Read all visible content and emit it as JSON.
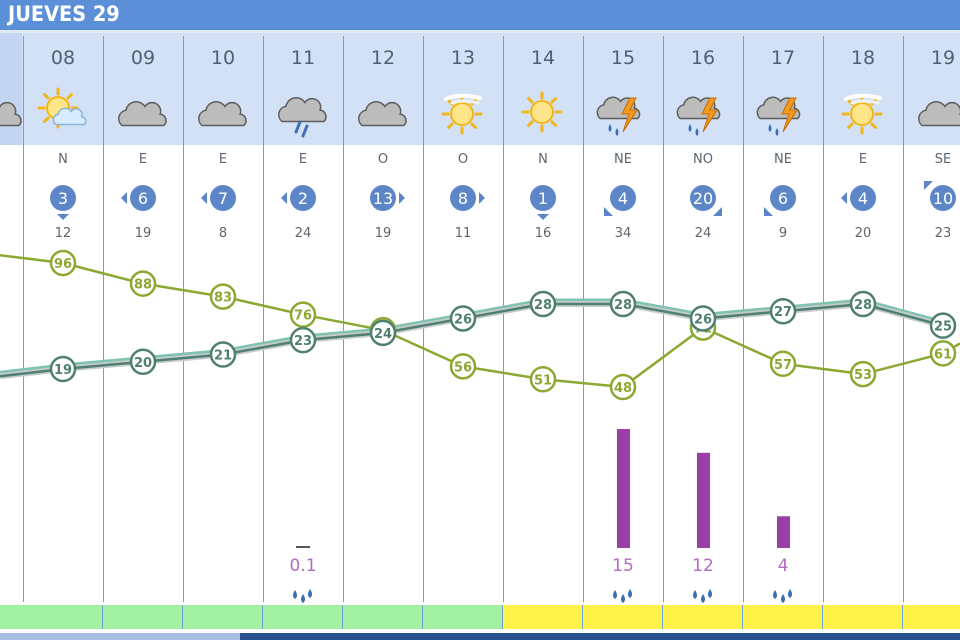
{
  "header": {
    "title": "JUEVES 29"
  },
  "hours": [
    {
      "label": "08",
      "icon": "sun-behind-cloud-icon",
      "direction": "N",
      "wind": "3",
      "arrow": "down",
      "gust": "12",
      "rain": null
    },
    {
      "label": "09",
      "icon": "cloud-icon",
      "direction": "E",
      "wind": "6",
      "arrow": "left",
      "gust": "19",
      "rain": null
    },
    {
      "label": "10",
      "icon": "cloud-icon",
      "direction": "E",
      "wind": "7",
      "arrow": "left",
      "gust": "8",
      "rain": null
    },
    {
      "label": "11",
      "icon": "rain-cloud-icon",
      "direction": "E",
      "wind": "2",
      "arrow": "left",
      "gust": "24",
      "rain": "0.1"
    },
    {
      "label": "12",
      "icon": "cloud-icon",
      "direction": "O",
      "wind": "13",
      "arrow": "right",
      "gust": "19",
      "rain": null
    },
    {
      "label": "13",
      "icon": "hazy-sun-icon",
      "direction": "O",
      "wind": "8",
      "arrow": "right",
      "gust": "11",
      "rain": null
    },
    {
      "label": "14",
      "icon": "sun-icon",
      "direction": "N",
      "wind": "1",
      "arrow": "down",
      "gust": "16",
      "rain": null
    },
    {
      "label": "15",
      "icon": "thunderstorm-icon",
      "direction": "NE",
      "wind": "4",
      "arrow": "bottom-left",
      "gust": "34",
      "rain": "15"
    },
    {
      "label": "16",
      "icon": "thunderstorm-icon",
      "direction": "NO",
      "wind": "20",
      "arrow": "bottom-right",
      "gust": "24",
      "rain": "12"
    },
    {
      "label": "17",
      "icon": "thunderstorm-icon",
      "direction": "NE",
      "wind": "6",
      "arrow": "bottom-left",
      "gust": "9",
      "rain": "4"
    },
    {
      "label": "18",
      "icon": "hazy-sun-icon",
      "direction": "E",
      "wind": "4",
      "arrow": "left",
      "gust": "20",
      "rain": null
    },
    {
      "label": "19",
      "icon": "cloud-icon",
      "direction": "SE",
      "wind": "10",
      "arrow": "top-left",
      "gust": "23",
      "rain": null
    }
  ],
  "chart_data": {
    "type": "line",
    "x": [
      "08",
      "09",
      "10",
      "11",
      "12",
      "13",
      "14",
      "15",
      "16",
      "17",
      "18",
      "19"
    ],
    "series": [
      {
        "values": [
          96,
          88,
          83,
          76,
          70,
          56,
          51,
          48,
          71,
          57,
          53,
          61
        ]
      },
      {
        "values": [
          19,
          20,
          21,
          23,
          24,
          26,
          28,
          28,
          26,
          27,
          28,
          25
        ]
      }
    ]
  },
  "precip_bars": [
    0,
    0,
    0,
    0.1,
    0,
    0,
    0,
    15,
    12,
    4,
    0,
    0
  ],
  "footer_colors": [
    "#a2f0a2",
    "#a2f0a2",
    "#a2f0a2",
    "#a2f0a2",
    "#a2f0a2",
    "#a2f0a2",
    "#fff34a",
    "#fff34a",
    "#fff34a",
    "#fff34a",
    "#fff34a",
    "#fff34a"
  ],
  "colors": {
    "humidity_line": "#8aa832",
    "temperature_line": "#4f7f70",
    "temperature_shadow": "#7fc2b0",
    "wind_badge": "#5d86c9",
    "precip_bar": "#9a3fa3",
    "header_band": "#d2e1f5",
    "title_bar": "#5b8fd8"
  }
}
